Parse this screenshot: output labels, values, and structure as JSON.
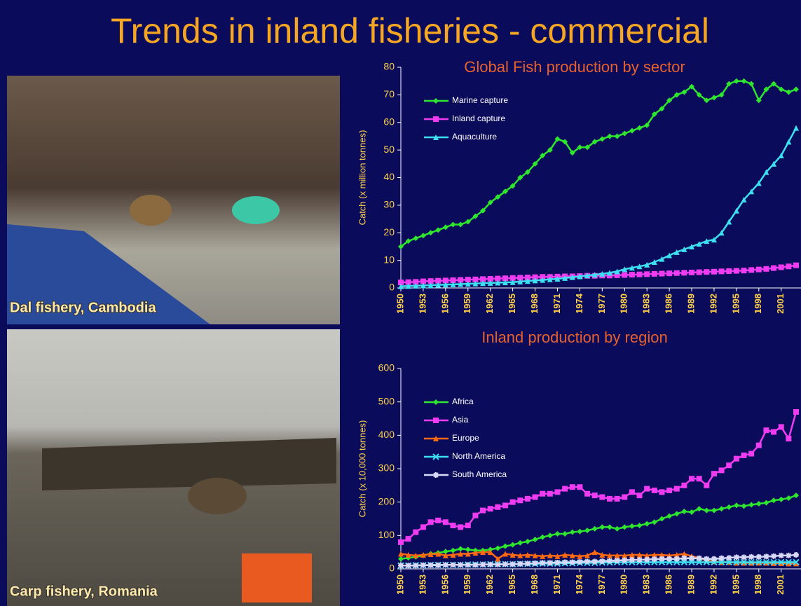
{
  "title": "Trends in inland fisheries - commercial",
  "photos": [
    {
      "caption": "Dal fishery, Cambodia"
    },
    {
      "caption": "Carp fishery, Romania"
    }
  ],
  "chart_data": [
    {
      "type": "line",
      "title": "Global Fish production by sector",
      "y_label": "Catch (x million tonnes)",
      "x": [
        1950,
        1951,
        1952,
        1953,
        1954,
        1955,
        1956,
        1957,
        1958,
        1959,
        1960,
        1961,
        1962,
        1963,
        1964,
        1965,
        1966,
        1967,
        1968,
        1969,
        1970,
        1971,
        1972,
        1973,
        1974,
        1975,
        1976,
        1977,
        1978,
        1979,
        1980,
        1981,
        1982,
        1983,
        1984,
        1985,
        1986,
        1987,
        1988,
        1989,
        1990,
        1991,
        1992,
        1993,
        1994,
        1995,
        1996,
        1997,
        1998,
        1999,
        2000,
        2001,
        2002,
        2003
      ],
      "xlim": [
        1950,
        2003
      ],
      "xticks": [
        1950,
        1953,
        1956,
        1959,
        1962,
        1965,
        1968,
        1971,
        1974,
        1977,
        1980,
        1983,
        1986,
        1989,
        1992,
        1995,
        1998,
        2001
      ],
      "ylim": [
        0,
        80
      ],
      "yticks": [
        0,
        10,
        20,
        30,
        40,
        50,
        60,
        70,
        80
      ],
      "series": [
        {
          "name": "Marine capture",
          "color": "#2ee62e",
          "marker": "diamond",
          "values": [
            15,
            17,
            18,
            19,
            20,
            21,
            22,
            23,
            23,
            24,
            26,
            28,
            31,
            33,
            35,
            37,
            40,
            42,
            45,
            48,
            50,
            54,
            53,
            49,
            51,
            51,
            53,
            54,
            55,
            55,
            56,
            57,
            58,
            59,
            63,
            65,
            68,
            70,
            71,
            73,
            70,
            68,
            69,
            70,
            74,
            75,
            75,
            74,
            68,
            72,
            74,
            72,
            71,
            72
          ]
        },
        {
          "name": "Inland capture",
          "color": "#f03cf0",
          "marker": "square",
          "values": [
            2,
            2.1,
            2.2,
            2.4,
            2.5,
            2.6,
            2.7,
            2.8,
            2.9,
            3,
            3.1,
            3.2,
            3.3,
            3.4,
            3.5,
            3.6,
            3.7,
            3.8,
            3.9,
            4,
            4,
            4.1,
            4.2,
            4.2,
            4.3,
            4.4,
            4.4,
            4.5,
            4.5,
            4.6,
            4.7,
            4.8,
            4.9,
            5,
            5.1,
            5.2,
            5.3,
            5.4,
            5.5,
            5.6,
            5.7,
            5.8,
            5.9,
            6,
            6.1,
            6.2,
            6.3,
            6.5,
            6.7,
            6.9,
            7.2,
            7.5,
            7.8,
            8.2
          ]
        },
        {
          "name": "Aquaculture",
          "color": "#3ce0f0",
          "marker": "triangle",
          "values": [
            0.6,
            0.7,
            0.8,
            0.9,
            1,
            1.1,
            1.2,
            1.3,
            1.4,
            1.5,
            1.6,
            1.7,
            1.8,
            1.9,
            2,
            2.1,
            2.3,
            2.5,
            2.7,
            2.9,
            3.1,
            3.3,
            3.6,
            3.9,
            4.2,
            4.5,
            4.8,
            5.1,
            5.5,
            6,
            6.8,
            7.3,
            7.8,
            8.4,
            9.4,
            10.5,
            11.8,
            13,
            14,
            15,
            16,
            17,
            17.5,
            20,
            24,
            28,
            32,
            35,
            38,
            42,
            45,
            48,
            53,
            58
          ]
        }
      ]
    },
    {
      "type": "line",
      "title": "Inland production by region",
      "y_label": "Catch (x 10,000 tonnes)",
      "x": [
        1950,
        1951,
        1952,
        1953,
        1954,
        1955,
        1956,
        1957,
        1958,
        1959,
        1960,
        1961,
        1962,
        1963,
        1964,
        1965,
        1966,
        1967,
        1968,
        1969,
        1970,
        1971,
        1972,
        1973,
        1974,
        1975,
        1976,
        1977,
        1978,
        1979,
        1980,
        1981,
        1982,
        1983,
        1984,
        1985,
        1986,
        1987,
        1988,
        1989,
        1990,
        1991,
        1992,
        1993,
        1994,
        1995,
        1996,
        1997,
        1998,
        1999,
        2000,
        2001,
        2002,
        2003
      ],
      "xlim": [
        1950,
        2003
      ],
      "xticks": [
        1950,
        1953,
        1956,
        1959,
        1962,
        1965,
        1968,
        1971,
        1974,
        1977,
        1980,
        1983,
        1986,
        1989,
        1992,
        1995,
        1998,
        2001
      ],
      "ylim": [
        0,
        600
      ],
      "yticks": [
        0,
        100,
        200,
        300,
        400,
        500,
        600
      ],
      "series": [
        {
          "name": "Africa",
          "color": "#2ee62e",
          "marker": "diamond",
          "values": [
            30,
            33,
            36,
            40,
            45,
            48,
            52,
            55,
            60,
            58,
            55,
            55,
            58,
            62,
            68,
            72,
            78,
            82,
            88,
            95,
            100,
            105,
            105,
            110,
            112,
            115,
            120,
            125,
            125,
            120,
            125,
            128,
            130,
            135,
            140,
            150,
            158,
            165,
            172,
            170,
            180,
            175,
            175,
            180,
            185,
            190,
            188,
            192,
            195,
            198,
            205,
            208,
            212,
            220
          ]
        },
        {
          "name": "Asia",
          "color": "#f03cf0",
          "marker": "square",
          "values": [
            80,
            90,
            110,
            125,
            140,
            145,
            140,
            130,
            125,
            130,
            160,
            175,
            180,
            185,
            190,
            200,
            205,
            210,
            215,
            225,
            225,
            230,
            240,
            245,
            245,
            225,
            220,
            215,
            210,
            210,
            215,
            230,
            220,
            240,
            235,
            230,
            235,
            240,
            250,
            270,
            270,
            250,
            285,
            295,
            310,
            330,
            340,
            345,
            370,
            415,
            410,
            425,
            390,
            470
          ]
        },
        {
          "name": "Europe",
          "color": "#ff6a10",
          "marker": "triangle",
          "values": [
            45,
            42,
            40,
            42,
            44,
            45,
            40,
            42,
            45,
            45,
            48,
            50,
            50,
            30,
            45,
            42,
            40,
            42,
            40,
            38,
            40,
            38,
            42,
            40,
            38,
            40,
            50,
            42,
            40,
            40,
            40,
            42,
            42,
            40,
            42,
            42,
            40,
            42,
            45,
            38,
            32,
            25,
            22,
            20,
            20,
            18,
            18,
            18,
            18,
            18,
            17,
            17,
            16,
            16
          ]
        },
        {
          "name": "North America",
          "color": "#3ce0f0",
          "marker": "cross",
          "values": [
            10,
            10,
            11,
            11,
            12,
            12,
            12,
            12,
            12,
            13,
            13,
            13,
            14,
            14,
            14,
            14,
            15,
            15,
            15,
            16,
            16,
            16,
            17,
            17,
            18,
            18,
            18,
            19,
            19,
            20,
            20,
            20,
            20,
            20,
            20,
            20,
            20,
            20,
            20,
            20,
            20,
            20,
            20,
            20,
            20,
            20,
            20,
            20,
            20,
            20,
            20,
            20,
            20,
            20
          ]
        },
        {
          "name": "South America",
          "color": "#d8d8f8",
          "marker": "star",
          "values": [
            10,
            10,
            10,
            11,
            11,
            11,
            12,
            12,
            12,
            12,
            12,
            13,
            13,
            13,
            14,
            14,
            15,
            16,
            17,
            18,
            18,
            19,
            20,
            20,
            21,
            22,
            22,
            23,
            24,
            25,
            26,
            27,
            27,
            28,
            29,
            30,
            30,
            30,
            32,
            32,
            32,
            30,
            30,
            32,
            33,
            35,
            35,
            36,
            36,
            37,
            38,
            40,
            40,
            42
          ]
        }
      ]
    }
  ]
}
